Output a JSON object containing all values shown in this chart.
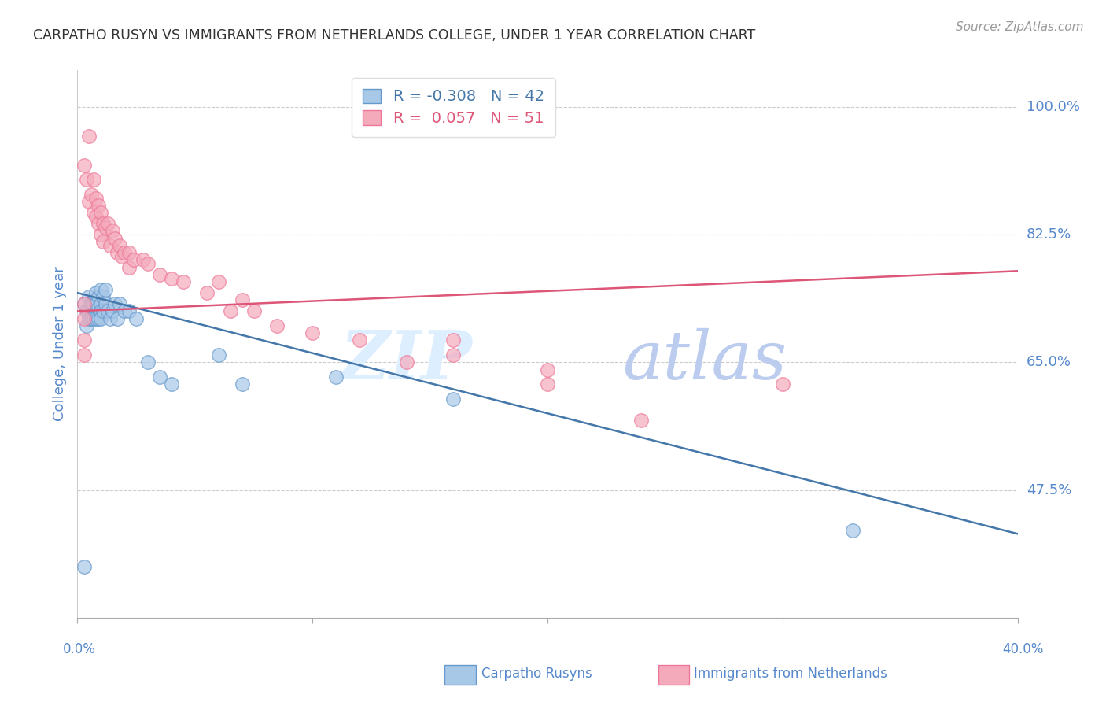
{
  "title": "CARPATHO RUSYN VS IMMIGRANTS FROM NETHERLANDS COLLEGE, UNDER 1 YEAR CORRELATION CHART",
  "source": "Source: ZipAtlas.com",
  "ylabel": "College, Under 1 year",
  "legend_blue_r": "-0.308",
  "legend_blue_n": "42",
  "legend_pink_r": "0.057",
  "legend_pink_n": "51",
  "legend_blue_label": "Carpatho Rusyns",
  "legend_pink_label": "Immigrants from Netherlands",
  "watermark_zip": "ZIP",
  "watermark_atlas": "atlas",
  "x_min": 0.0,
  "x_max": 0.4,
  "y_min": 0.3,
  "y_max": 1.05,
  "ytick_vals": [
    1.0,
    0.825,
    0.65,
    0.475
  ],
  "ytick_labels": [
    "100.0%",
    "82.5%",
    "65.0%",
    "47.5%"
  ],
  "blue_scatter_x": [
    0.003,
    0.004,
    0.004,
    0.005,
    0.005,
    0.005,
    0.006,
    0.006,
    0.007,
    0.007,
    0.008,
    0.008,
    0.008,
    0.009,
    0.009,
    0.009,
    0.01,
    0.01,
    0.01,
    0.01,
    0.011,
    0.011,
    0.012,
    0.012,
    0.013,
    0.014,
    0.015,
    0.016,
    0.017,
    0.018,
    0.02,
    0.022,
    0.025,
    0.03,
    0.035,
    0.04,
    0.06,
    0.07,
    0.11,
    0.16,
    0.33,
    0.003
  ],
  "blue_scatter_y": [
    0.73,
    0.72,
    0.7,
    0.74,
    0.72,
    0.71,
    0.73,
    0.71,
    0.73,
    0.71,
    0.745,
    0.73,
    0.71,
    0.74,
    0.725,
    0.71,
    0.75,
    0.73,
    0.72,
    0.71,
    0.74,
    0.72,
    0.75,
    0.73,
    0.72,
    0.71,
    0.72,
    0.73,
    0.71,
    0.73,
    0.72,
    0.72,
    0.71,
    0.65,
    0.63,
    0.62,
    0.66,
    0.62,
    0.63,
    0.6,
    0.42,
    0.37
  ],
  "pink_scatter_x": [
    0.003,
    0.004,
    0.005,
    0.005,
    0.006,
    0.007,
    0.007,
    0.008,
    0.008,
    0.009,
    0.009,
    0.01,
    0.01,
    0.011,
    0.011,
    0.012,
    0.013,
    0.014,
    0.015,
    0.016,
    0.017,
    0.018,
    0.019,
    0.02,
    0.022,
    0.022,
    0.024,
    0.028,
    0.03,
    0.035,
    0.04,
    0.045,
    0.055,
    0.06,
    0.065,
    0.07,
    0.075,
    0.085,
    0.1,
    0.12,
    0.14,
    0.16,
    0.2,
    0.24,
    0.3,
    0.003,
    0.003,
    0.2,
    0.16,
    0.003,
    0.003
  ],
  "pink_scatter_y": [
    0.92,
    0.9,
    0.96,
    0.87,
    0.88,
    0.9,
    0.855,
    0.875,
    0.85,
    0.865,
    0.84,
    0.855,
    0.825,
    0.84,
    0.815,
    0.835,
    0.84,
    0.81,
    0.83,
    0.82,
    0.8,
    0.81,
    0.795,
    0.8,
    0.78,
    0.8,
    0.79,
    0.79,
    0.785,
    0.77,
    0.765,
    0.76,
    0.745,
    0.76,
    0.72,
    0.735,
    0.72,
    0.7,
    0.69,
    0.68,
    0.65,
    0.68,
    0.62,
    0.57,
    0.62,
    0.73,
    0.71,
    0.64,
    0.66,
    0.68,
    0.66
  ],
  "blue_line_x": [
    0.0,
    0.4
  ],
  "blue_line_y": [
    0.745,
    0.415
  ],
  "pink_line_x": [
    0.0,
    0.4
  ],
  "pink_line_y": [
    0.72,
    0.775
  ],
  "blue_color": "#A8C8E8",
  "pink_color": "#F4AABB",
  "blue_edge_color": "#6699CC",
  "pink_edge_color": "#EE7799",
  "blue_line_color": "#4477AA",
  "pink_line_color": "#DD5577",
  "title_color": "#333333",
  "tick_label_color": "#5588CC",
  "grid_color": "#CCCCCC",
  "background_color": "#FFFFFF",
  "source_color": "#999999"
}
